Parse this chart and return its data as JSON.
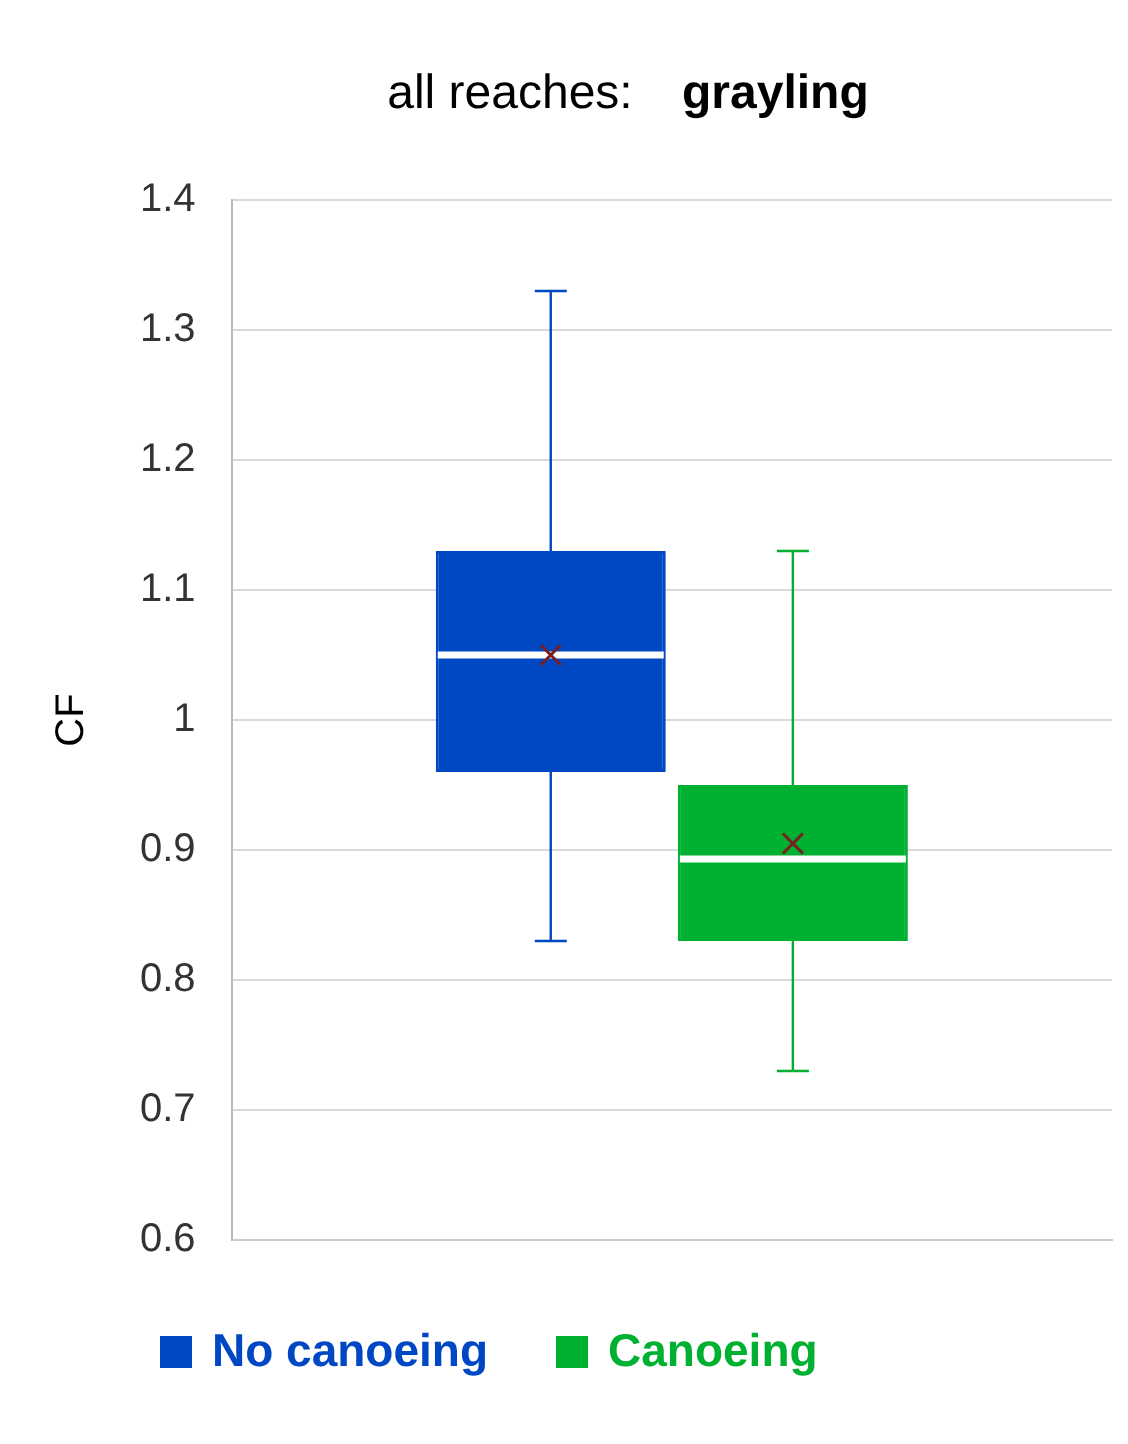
{
  "chart_data": {
    "type": "box",
    "title": "all reaches: grayling",
    "ylabel": "CF",
    "categories": [
      null
    ],
    "series": [
      {
        "name": "No canoeing",
        "color": "#0047c3",
        "boxes": [
          {
            "low": 0.83,
            "q1": 0.96,
            "median": 1.05,
            "q3": 1.13,
            "high": 1.33,
            "mean": 1.05
          }
        ]
      },
      {
        "name": "Canoeing",
        "color": "#00b030",
        "boxes": [
          {
            "low": 0.73,
            "q1": 0.83,
            "median": 0.893,
            "q3": 0.95,
            "high": 1.13,
            "mean": 0.905
          }
        ]
      }
    ],
    "ylim": [
      0.6,
      1.4
    ],
    "yticks": [
      0.6,
      0.7,
      0.8,
      0.9,
      1,
      1.1,
      1.2,
      1.3,
      1.4
    ],
    "grid": "y",
    "legend": "bottom"
  }
}
